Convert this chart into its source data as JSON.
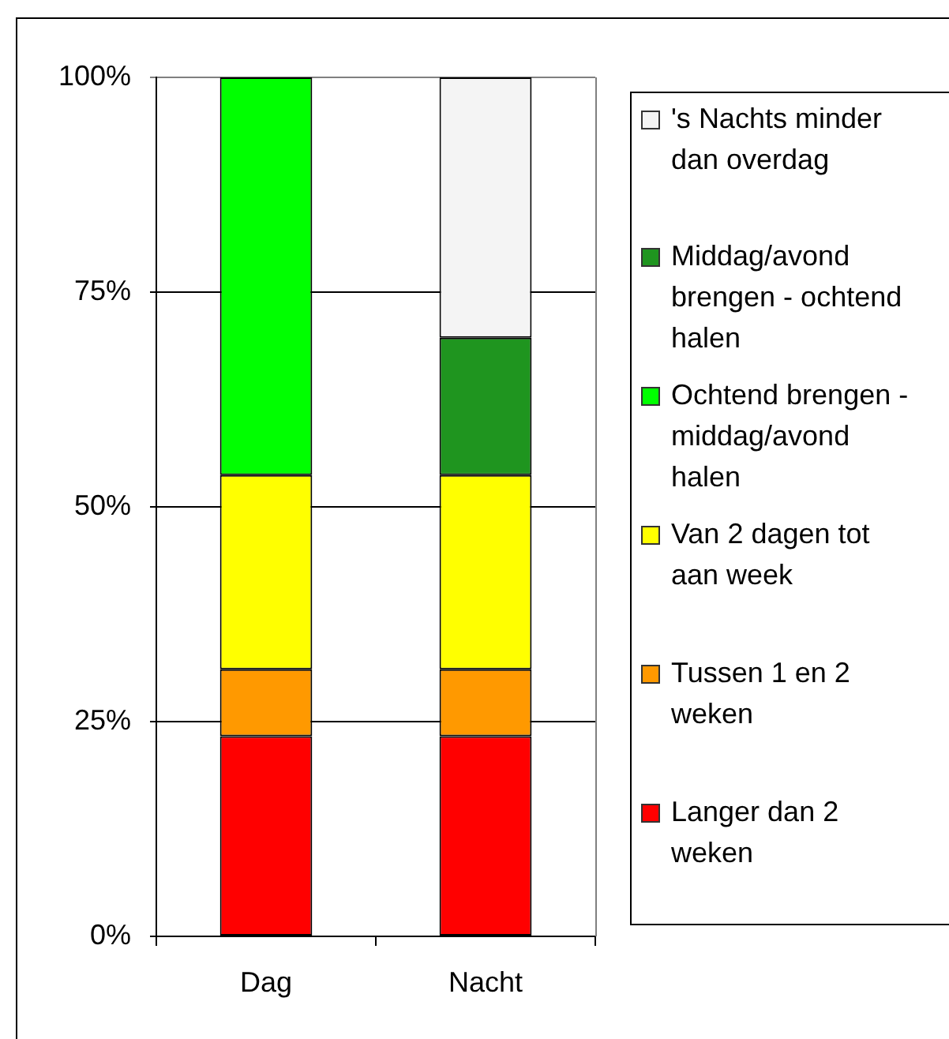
{
  "chart_data": {
    "type": "bar",
    "categories": [
      "Dag",
      "Nacht"
    ],
    "series": [
      {
        "name": "Langer dan 2 weken",
        "color": "#ff0000",
        "values": [
          23.3,
          23.3
        ]
      },
      {
        "name": "Tussen 1 en 2 weken",
        "color": "#ff9900",
        "values": [
          7.8,
          7.8
        ]
      },
      {
        "name": "Van 2 dagen tot aan week",
        "color": "#ffff00",
        "values": [
          22.6,
          22.6
        ]
      },
      {
        "name": "Ochtend brengen - middag/avond halen",
        "color": "#00ff00",
        "values": [
          46.3,
          null
        ]
      },
      {
        "name": "Middag/avond brengen - ochtend halen",
        "color": "#1f951f",
        "values": [
          null,
          16
        ]
      },
      {
        "name": "'s Nachts minder dan overdag",
        "color": "#f4f4f4",
        "values": [
          null,
          30.3
        ]
      }
    ],
    "stacked": true,
    "ylim": [
      0,
      100
    ],
    "yticks": [
      {
        "value": 0,
        "label": "0%"
      },
      {
        "value": 25,
        "label": "25%"
      },
      {
        "value": 50,
        "label": "50%"
      },
      {
        "value": 75,
        "label": "75%"
      },
      {
        "value": 100,
        "label": "100%"
      }
    ],
    "grid": "y",
    "legend": "right"
  }
}
